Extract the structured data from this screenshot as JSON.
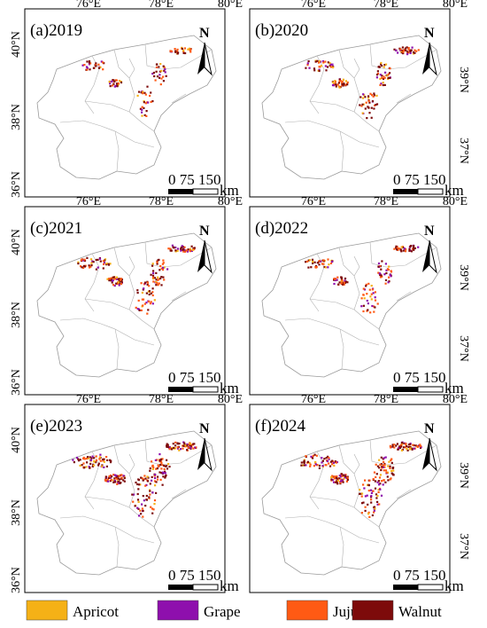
{
  "panels": [
    {
      "label": "(a)2019",
      "intensity": 0.35
    },
    {
      "label": "(b)2020",
      "intensity": 0.55
    },
    {
      "label": "(c)2021",
      "intensity": 0.65
    },
    {
      "label": "(d)2022",
      "intensity": 0.5
    },
    {
      "label": "(e)2023",
      "intensity": 1.0
    },
    {
      "label": "(f)2024",
      "intensity": 0.95
    }
  ],
  "axes": {
    "top_ticks": [
      "76°E",
      "78°E",
      "80°E"
    ],
    "left_ticks": [
      "40°N",
      "38°N",
      "36°N"
    ],
    "right_ticks": [
      "39°N",
      "37°N"
    ]
  },
  "north_arrow": "N",
  "scalebar": {
    "numbers": "0   75 150",
    "unit": "km"
  },
  "legend": [
    {
      "label": "Apricot",
      "color": "#f5b116"
    },
    {
      "label": "Grape",
      "color": "#8e0fad"
    },
    {
      "label": "Jujube",
      "color": "#ff5a14"
    },
    {
      "label": "Walnut",
      "color": "#7d0b0b"
    }
  ]
}
